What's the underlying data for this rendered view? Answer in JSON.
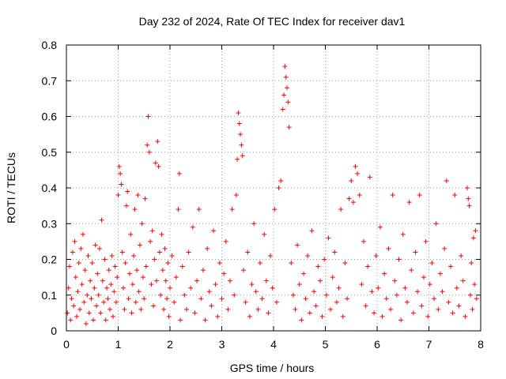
{
  "chart_data": {
    "type": "scatter",
    "title": "Day 232 of 2024, Rate Of TEC Index for receiver dav1",
    "xlabel": "GPS time / hours",
    "ylabel": "ROTI / TECUs",
    "xlim": [
      0,
      8
    ],
    "ylim": [
      0,
      0.8
    ],
    "x_ticks": [
      "0",
      "1",
      "2",
      "3",
      "4",
      "5",
      "6",
      "7",
      "8"
    ],
    "y_ticks": [
      "0",
      "0.1",
      "0.2",
      "0.3",
      "0.4",
      "0.5",
      "0.6",
      "0.7",
      "0.8"
    ],
    "grid": true,
    "marker": "+",
    "color": "#ff0000",
    "series": [
      {
        "name": "ROTI",
        "points": [
          [
            0.02,
            0.05
          ],
          [
            0.04,
            0.12
          ],
          [
            0.06,
            0.18
          ],
          [
            0.08,
            0.03
          ],
          [
            0.1,
            0.09
          ],
          [
            0.12,
            0.22
          ],
          [
            0.14,
            0.07
          ],
          [
            0.16,
            0.25
          ],
          [
            0.18,
            0.15
          ],
          [
            0.2,
            0.04
          ],
          [
            0.22,
            0.11
          ],
          [
            0.24,
            0.19
          ],
          [
            0.26,
            0.06
          ],
          [
            0.28,
            0.23
          ],
          [
            0.3,
            0.13
          ],
          [
            0.32,
            0.27
          ],
          [
            0.34,
            0.08
          ],
          [
            0.36,
            0.17
          ],
          [
            0.38,
            0.02
          ],
          [
            0.4,
            0.1
          ],
          [
            0.42,
            0.21
          ],
          [
            0.44,
            0.05
          ],
          [
            0.46,
            0.14
          ],
          [
            0.48,
            0.09
          ],
          [
            0.5,
            0.19
          ],
          [
            0.52,
            0.03
          ],
          [
            0.54,
            0.12
          ],
          [
            0.56,
            0.24
          ],
          [
            0.58,
            0.07
          ],
          [
            0.6,
            0.16
          ],
          [
            0.62,
            0.1
          ],
          [
            0.64,
            0.23
          ],
          [
            0.66,
            0.05
          ],
          [
            0.68,
            0.31
          ],
          [
            0.7,
            0.14
          ],
          [
            0.72,
            0.08
          ],
          [
            0.74,
            0.2
          ],
          [
            0.76,
            0.03
          ],
          [
            0.78,
            0.12
          ],
          [
            0.8,
            0.09
          ],
          [
            0.82,
            0.17
          ],
          [
            0.84,
            0.06
          ],
          [
            0.86,
            0.13
          ],
          [
            0.88,
            0.21
          ],
          [
            0.9,
            0.04
          ],
          [
            0.92,
            0.11
          ],
          [
            0.94,
            0.18
          ],
          [
            0.96,
            0.08
          ],
          [
            0.98,
            0.15
          ],
          [
            1.0,
            0.38
          ],
          [
            1.02,
            0.46
          ],
          [
            1.04,
            0.44
          ],
          [
            1.06,
            0.41
          ],
          [
            1.08,
            0.22
          ],
          [
            1.1,
            0.12
          ],
          [
            1.12,
            0.06
          ],
          [
            1.14,
            0.19
          ],
          [
            1.16,
            0.35
          ],
          [
            1.18,
            0.39
          ],
          [
            1.2,
            0.09
          ],
          [
            1.22,
            0.16
          ],
          [
            1.24,
            0.27
          ],
          [
            1.26,
            0.05
          ],
          [
            1.28,
            0.13
          ],
          [
            1.3,
            0.21
          ],
          [
            1.32,
            0.34
          ],
          [
            1.34,
            0.08
          ],
          [
            1.36,
            0.17
          ],
          [
            1.38,
            0.38
          ],
          [
            1.4,
            0.11
          ],
          [
            1.42,
            0.24
          ],
          [
            1.44,
            0.06
          ],
          [
            1.46,
            0.3
          ],
          [
            1.48,
            0.15
          ],
          [
            1.5,
            0.09
          ],
          [
            1.52,
            0.37
          ],
          [
            1.54,
            0.18
          ],
          [
            1.56,
            0.52
          ],
          [
            1.58,
            0.6
          ],
          [
            1.6,
            0.5
          ],
          [
            1.62,
            0.25
          ],
          [
            1.64,
            0.13
          ],
          [
            1.66,
            0.28
          ],
          [
            1.68,
            0.07
          ],
          [
            1.7,
            0.2
          ],
          [
            1.72,
            0.47
          ],
          [
            1.74,
            0.14
          ],
          [
            1.76,
            0.53
          ],
          [
            1.78,
            0.46
          ],
          [
            1.8,
            0.22
          ],
          [
            1.82,
            0.1
          ],
          [
            1.84,
            0.27
          ],
          [
            1.86,
            0.17
          ],
          [
            1.88,
            0.06
          ],
          [
            1.9,
            0.23
          ],
          [
            1.92,
            0.14
          ],
          [
            1.94,
            0.09
          ],
          [
            1.96,
            0.19
          ],
          [
            1.98,
            0.04
          ],
          [
            2.0,
            0.12
          ],
          [
            2.04,
            0.21
          ],
          [
            2.08,
            0.08
          ],
          [
            2.12,
            0.15
          ],
          [
            2.16,
            0.34
          ],
          [
            2.18,
            0.44
          ],
          [
            2.2,
            0.03
          ],
          [
            2.24,
            0.18
          ],
          [
            2.28,
            0.1
          ],
          [
            2.32,
            0.06
          ],
          [
            2.36,
            0.22
          ],
          [
            2.4,
            0.12
          ],
          [
            2.44,
            0.29
          ],
          [
            2.48,
            0.05
          ],
          [
            2.52,
            0.14
          ],
          [
            2.56,
            0.34
          ],
          [
            2.6,
            0.09
          ],
          [
            2.64,
            0.17
          ],
          [
            2.68,
            0.03
          ],
          [
            2.72,
            0.23
          ],
          [
            2.76,
            0.11
          ],
          [
            2.8,
            0.07
          ],
          [
            2.84,
            0.28
          ],
          [
            2.88,
            0.13
          ],
          [
            2.92,
            0.04
          ],
          [
            2.96,
            0.19
          ],
          [
            3.0,
            0.09
          ],
          [
            3.04,
            0.16
          ],
          [
            3.08,
            0.25
          ],
          [
            3.12,
            0.06
          ],
          [
            3.16,
            0.14
          ],
          [
            3.2,
            0.34
          ],
          [
            3.24,
            0.1
          ],
          [
            3.28,
            0.38
          ],
          [
            3.3,
            0.48
          ],
          [
            3.32,
            0.61
          ],
          [
            3.34,
            0.58
          ],
          [
            3.36,
            0.55
          ],
          [
            3.38,
            0.52
          ],
          [
            3.4,
            0.49
          ],
          [
            3.42,
            0.17
          ],
          [
            3.46,
            0.08
          ],
          [
            3.5,
            0.22
          ],
          [
            3.54,
            0.04
          ],
          [
            3.58,
            0.13
          ],
          [
            3.62,
            0.3
          ],
          [
            3.66,
            0.11
          ],
          [
            3.7,
            0.06
          ],
          [
            3.74,
            0.19
          ],
          [
            3.78,
            0.09
          ],
          [
            3.82,
            0.27
          ],
          [
            3.86,
            0.14
          ],
          [
            3.9,
            0.05
          ],
          [
            3.94,
            0.21
          ],
          [
            3.98,
            0.12
          ],
          [
            4.02,
            0.34
          ],
          [
            4.06,
            0.08
          ],
          [
            4.1,
            0.4
          ],
          [
            4.14,
            0.42
          ],
          [
            4.18,
            0.62
          ],
          [
            4.2,
            0.66
          ],
          [
            4.22,
            0.74
          ],
          [
            4.24,
            0.71
          ],
          [
            4.26,
            0.68
          ],
          [
            4.28,
            0.64
          ],
          [
            4.3,
            0.57
          ],
          [
            4.34,
            0.19
          ],
          [
            4.38,
            0.1
          ],
          [
            4.42,
            0.06
          ],
          [
            4.46,
            0.24
          ],
          [
            4.5,
            0.13
          ],
          [
            4.54,
            0.03
          ],
          [
            4.58,
            0.16
          ],
          [
            4.62,
            0.09
          ],
          [
            4.66,
            0.21
          ],
          [
            4.7,
            0.05
          ],
          [
            4.74,
            0.28
          ],
          [
            4.78,
            0.11
          ],
          [
            4.82,
            0.07
          ],
          [
            4.86,
            0.18
          ],
          [
            4.9,
            0.14
          ],
          [
            4.94,
            0.04
          ],
          [
            4.98,
            0.2
          ],
          [
            5.02,
            0.1
          ],
          [
            5.06,
            0.26
          ],
          [
            5.1,
            0.06
          ],
          [
            5.14,
            0.15
          ],
          [
            5.18,
            0.22
          ],
          [
            5.22,
            0.08
          ],
          [
            5.26,
            0.12
          ],
          [
            5.3,
            0.34
          ],
          [
            5.34,
            0.04
          ],
          [
            5.38,
            0.19
          ],
          [
            5.42,
            0.09
          ],
          [
            5.46,
            0.37
          ],
          [
            5.5,
            0.42
          ],
          [
            5.54,
            0.36
          ],
          [
            5.58,
            0.46
          ],
          [
            5.62,
            0.44
          ],
          [
            5.66,
            0.38
          ],
          [
            5.7,
            0.13
          ],
          [
            5.74,
            0.25
          ],
          [
            5.78,
            0.07
          ],
          [
            5.82,
            0.18
          ],
          [
            5.86,
            0.43
          ],
          [
            5.9,
            0.11
          ],
          [
            5.94,
            0.05
          ],
          [
            5.98,
            0.21
          ],
          [
            6.02,
            0.12
          ],
          [
            6.06,
            0.29
          ],
          [
            6.1,
            0.04
          ],
          [
            6.14,
            0.16
          ],
          [
            6.18,
            0.09
          ],
          [
            6.22,
            0.23
          ],
          [
            6.26,
            0.06
          ],
          [
            6.3,
            0.38
          ],
          [
            6.34,
            0.14
          ],
          [
            6.38,
            0.1
          ],
          [
            6.42,
            0.2
          ],
          [
            6.46,
            0.03
          ],
          [
            6.5,
            0.27
          ],
          [
            6.54,
            0.12
          ],
          [
            6.58,
            0.08
          ],
          [
            6.62,
            0.36
          ],
          [
            6.66,
            0.17
          ],
          [
            6.7,
            0.05
          ],
          [
            6.74,
            0.22
          ],
          [
            6.78,
            0.11
          ],
          [
            6.82,
            0.38
          ],
          [
            6.86,
            0.07
          ],
          [
            6.9,
            0.15
          ],
          [
            6.94,
            0.25
          ],
          [
            6.98,
            0.04
          ],
          [
            7.02,
            0.13
          ],
          [
            7.06,
            0.19
          ],
          [
            7.1,
            0.09
          ],
          [
            7.14,
            0.3
          ],
          [
            7.18,
            0.06
          ],
          [
            7.22,
            0.16
          ],
          [
            7.26,
            0.11
          ],
          [
            7.3,
            0.23
          ],
          [
            7.34,
            0.42
          ],
          [
            7.38,
            0.08
          ],
          [
            7.42,
            0.18
          ],
          [
            7.46,
            0.05
          ],
          [
            7.5,
            0.38
          ],
          [
            7.54,
            0.12
          ],
          [
            7.58,
            0.07
          ],
          [
            7.62,
            0.21
          ],
          [
            7.66,
            0.14
          ],
          [
            7.7,
            0.04
          ],
          [
            7.74,
            0.4
          ],
          [
            7.76,
            0.37
          ],
          [
            7.78,
            0.35
          ],
          [
            7.8,
            0.1
          ],
          [
            7.82,
            0.19
          ],
          [
            7.84,
            0.06
          ],
          [
            7.86,
            0.26
          ],
          [
            7.88,
            0.13
          ],
          [
            7.9,
            0.28
          ],
          [
            7.92,
            0.09
          ]
        ]
      }
    ]
  }
}
